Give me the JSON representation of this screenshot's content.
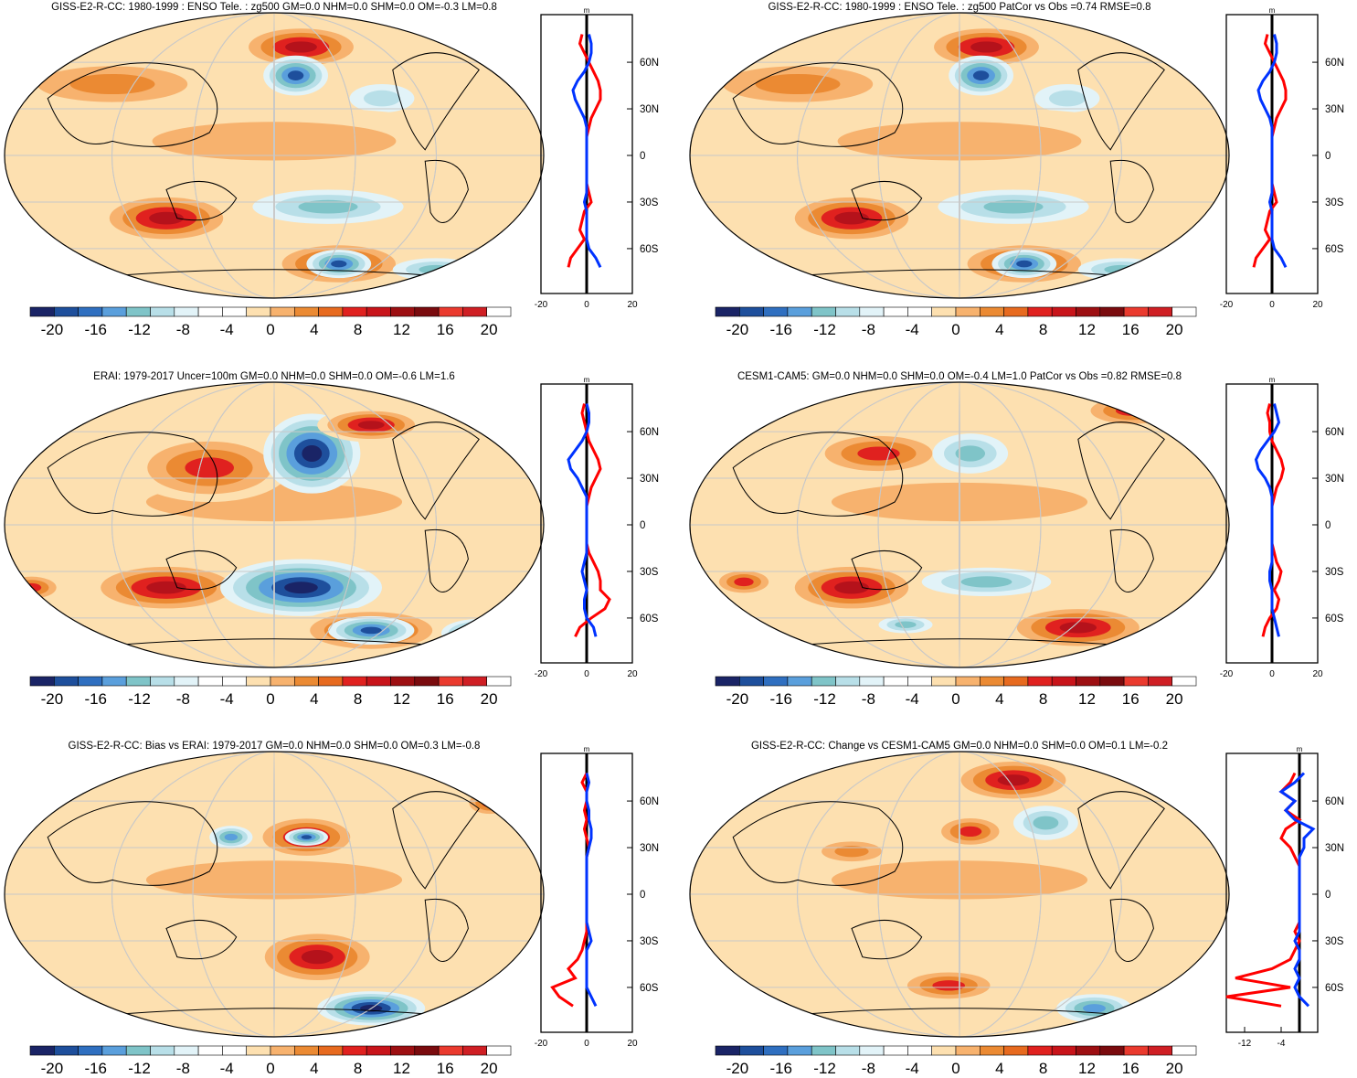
{
  "figure": {
    "colors": {
      "levels": [
        "#1a2466",
        "#1e4f9c",
        "#2f6fc0",
        "#5a9fdc",
        "#7fc4c8",
        "#b8dfe8",
        "#e2f3f8",
        "#ffffff",
        "#ffffff",
        "#fde0b0",
        "#f7b26e",
        "#eb8a33",
        "#e76a1f",
        "#e0211f",
        "#c8141a",
        "#9d0f12",
        "#7a0b0e",
        "#ea3a2e",
        "#cf1f24",
        "#ffffff"
      ],
      "obs_line": "#0033ff",
      "model_line": "#ff0000",
      "diff_line": "#000000",
      "coast": "#000000",
      "grid": "#c8c8c8"
    },
    "colorbar_labels": [
      "-20",
      "-16",
      "-12",
      "-8",
      "-4",
      "0",
      "4",
      "8",
      "12",
      "16",
      "20"
    ]
  },
  "chart_data": [
    {
      "type": "heatmap",
      "projection": "robinson",
      "title": "GISS-E2-R-CC: 1980-1999 : ENSO Tele. : zg500 GM=0.0 NHM=0.0 SHM=0.0 OM=-0.3 LM=0.8",
      "lat_labels": [
        "60N",
        "30N",
        "0",
        "30S",
        "60S"
      ],
      "profile": {
        "unit": "m",
        "xlim": [
          -20,
          20
        ],
        "xtick_labels": [
          "-20",
          "0",
          "20"
        ],
        "lat": [
          -72,
          -66,
          -60,
          -54,
          -48,
          -42,
          -36,
          -30,
          -24,
          -18,
          -12,
          -6,
          0,
          6,
          12,
          18,
          24,
          30,
          36,
          42,
          48,
          54,
          60,
          66,
          72,
          78
        ],
        "red": [
          -8,
          -7,
          -4,
          -1,
          -3,
          -2,
          -1,
          2,
          1,
          0,
          0,
          0,
          0,
          0,
          0,
          1,
          2,
          4,
          6,
          6,
          5,
          3,
          1,
          -1,
          -3,
          -2
        ],
        "blue": [
          6,
          4,
          1,
          0,
          0,
          0,
          0,
          -1,
          0,
          0,
          0,
          0,
          0,
          0,
          0,
          0,
          -1,
          -3,
          -5,
          -6,
          -4,
          -1,
          1,
          2,
          2,
          1
        ]
      }
    },
    {
      "type": "heatmap",
      "projection": "robinson",
      "title": "GISS-E2-R-CC: 1980-1999 : ENSO Tele. : zg500 PatCor vs Obs =0.74 RMSE=0.8",
      "lat_labels": [
        "60N",
        "30N",
        "0",
        "30S",
        "60S"
      ],
      "profile": {
        "unit": "m",
        "xlim": [
          -20,
          20
        ],
        "xtick_labels": [
          "-20",
          "0",
          "20"
        ],
        "lat": [
          -72,
          -66,
          -60,
          -54,
          -48,
          -42,
          -36,
          -30,
          -24,
          -18,
          -12,
          -6,
          0,
          6,
          12,
          18,
          24,
          30,
          36,
          42,
          48,
          54,
          60,
          66,
          72,
          78
        ],
        "red": [
          -8,
          -7,
          -4,
          -1,
          -3,
          -2,
          -1,
          2,
          1,
          0,
          0,
          0,
          0,
          0,
          0,
          1,
          2,
          4,
          6,
          6,
          5,
          3,
          1,
          -1,
          -3,
          -2
        ],
        "blue": [
          6,
          4,
          1,
          0,
          0,
          0,
          0,
          -1,
          0,
          0,
          0,
          0,
          0,
          0,
          0,
          0,
          -1,
          -3,
          -5,
          -6,
          -4,
          -1,
          1,
          2,
          2,
          1
        ]
      }
    },
    {
      "type": "heatmap",
      "projection": "robinson",
      "title": "ERAI: 1979-2017 Uncer=100m GM=0.0 NHM=0.0 SHM=0.0 OM=-0.6 LM=1.6",
      "lat_labels": [
        "60N",
        "30N",
        "0",
        "30S",
        "60S"
      ],
      "profile": {
        "unit": "m",
        "xlim": [
          -20,
          20
        ],
        "xtick_labels": [
          "-20",
          "0",
          "20"
        ],
        "lat": [
          -72,
          -66,
          -60,
          -54,
          -48,
          -42,
          -36,
          -30,
          -24,
          -18,
          -12,
          -6,
          0,
          6,
          12,
          18,
          24,
          30,
          36,
          42,
          48,
          54,
          60,
          66,
          72,
          78
        ],
        "red": [
          -5,
          -3,
          2,
          8,
          10,
          6,
          6,
          5,
          3,
          1,
          0,
          0,
          0,
          0,
          0,
          1,
          2,
          4,
          6,
          5,
          3,
          1,
          0,
          -1,
          -2,
          -1
        ],
        "blue": [
          4,
          3,
          0,
          -1,
          -1,
          0,
          -1,
          -2,
          -1,
          0,
          0,
          0,
          0,
          0,
          0,
          0,
          -2,
          -4,
          -7,
          -8,
          -5,
          -2,
          0,
          1,
          1,
          0
        ]
      }
    },
    {
      "type": "heatmap",
      "projection": "robinson",
      "title": "CESM1-CAM5: GM=0.0 NHM=0.0 SHM=0.0 OM=-0.4 LM=1.0 PatCor vs Obs =0.82 RMSE=0.8",
      "lat_labels": [
        "60N",
        "30N",
        "0",
        "30S",
        "60S"
      ],
      "profile": {
        "unit": "m",
        "xlim": [
          -20,
          20
        ],
        "xtick_labels": [
          "-20",
          "0",
          "20"
        ],
        "lat": [
          -72,
          -66,
          -60,
          -54,
          -48,
          -42,
          -36,
          -30,
          -24,
          -18,
          -12,
          -6,
          0,
          6,
          12,
          18,
          24,
          30,
          36,
          42,
          48,
          54,
          60,
          66,
          72,
          78
        ],
        "red": [
          -4,
          -3,
          -1,
          2,
          3,
          1,
          3,
          4,
          2,
          1,
          0,
          0,
          0,
          0,
          0,
          1,
          2,
          4,
          5,
          4,
          2,
          0,
          -1,
          -1,
          -2,
          -1
        ],
        "blue": [
          3,
          2,
          1,
          0,
          0,
          0,
          -1,
          -1,
          0,
          0,
          0,
          0,
          0,
          0,
          0,
          0,
          -1,
          -3,
          -6,
          -7,
          -5,
          -2,
          1,
          3,
          2,
          1
        ]
      }
    },
    {
      "type": "heatmap",
      "projection": "robinson",
      "title": "GISS-E2-R-CC: Bias vs ERAI: 1979-2017 GM=0.0 NHM=0.0 SHM=0.0 OM=0.3 LM=-0.8",
      "lat_labels": [
        "60N",
        "30N",
        "0",
        "30S",
        "60S"
      ],
      "profile": {
        "unit": "m",
        "xlim": [
          -20,
          20
        ],
        "xtick_labels": [
          "-20",
          "0",
          "20"
        ],
        "lat": [
          -72,
          -66,
          -60,
          -54,
          -48,
          -42,
          -36,
          -30,
          -24,
          -18,
          -12,
          -6,
          0,
          6,
          12,
          18,
          24,
          30,
          36,
          42,
          48,
          54,
          60,
          66,
          72,
          78
        ],
        "red": [
          -6,
          -12,
          -15,
          -5,
          -8,
          -4,
          -2,
          -1,
          0,
          0,
          0,
          0,
          0,
          0,
          0,
          0,
          0,
          1,
          0,
          -1,
          0,
          -1,
          0,
          0,
          -2,
          0
        ],
        "blue": [
          4,
          2,
          0,
          0,
          0,
          0,
          0,
          2,
          1,
          0,
          0,
          0,
          0,
          0,
          0,
          0,
          0,
          1,
          2,
          2,
          1,
          1,
          0,
          0,
          1,
          0
        ]
      }
    },
    {
      "type": "heatmap",
      "projection": "robinson",
      "title": "GISS-E2-R-CC: Change vs CESM1-CAM5 GM=0.0 NHM=0.0 SHM=0.0 OM=0.1 LM=-0.2",
      "lat_labels": [
        "60N",
        "30N",
        "0",
        "30S",
        "60S"
      ],
      "profile": {
        "unit": "m",
        "xlim": [
          -16,
          4
        ],
        "xtick_labels": [
          "-12",
          "-4"
        ],
        "lat": [
          -72,
          -66,
          -60,
          -54,
          -48,
          -42,
          -36,
          -30,
          -24,
          -18,
          -12,
          -6,
          0,
          6,
          12,
          18,
          24,
          30,
          36,
          42,
          48,
          54,
          60,
          66,
          72,
          78
        ],
        "red": [
          -4,
          -16,
          -2,
          -14,
          -6,
          -2,
          -1,
          0,
          -1,
          0,
          0,
          0,
          0,
          0,
          0,
          0,
          -1,
          -2,
          -4,
          -3,
          0,
          -3,
          -1,
          -4,
          -2,
          -1
        ],
        "blue": [
          2,
          0,
          -1,
          0,
          -1,
          0,
          0,
          -1,
          0,
          0,
          0,
          0,
          0,
          0,
          0,
          0,
          0,
          1,
          1,
          3,
          -1,
          -3,
          -1,
          -4,
          -1,
          1
        ]
      }
    }
  ]
}
